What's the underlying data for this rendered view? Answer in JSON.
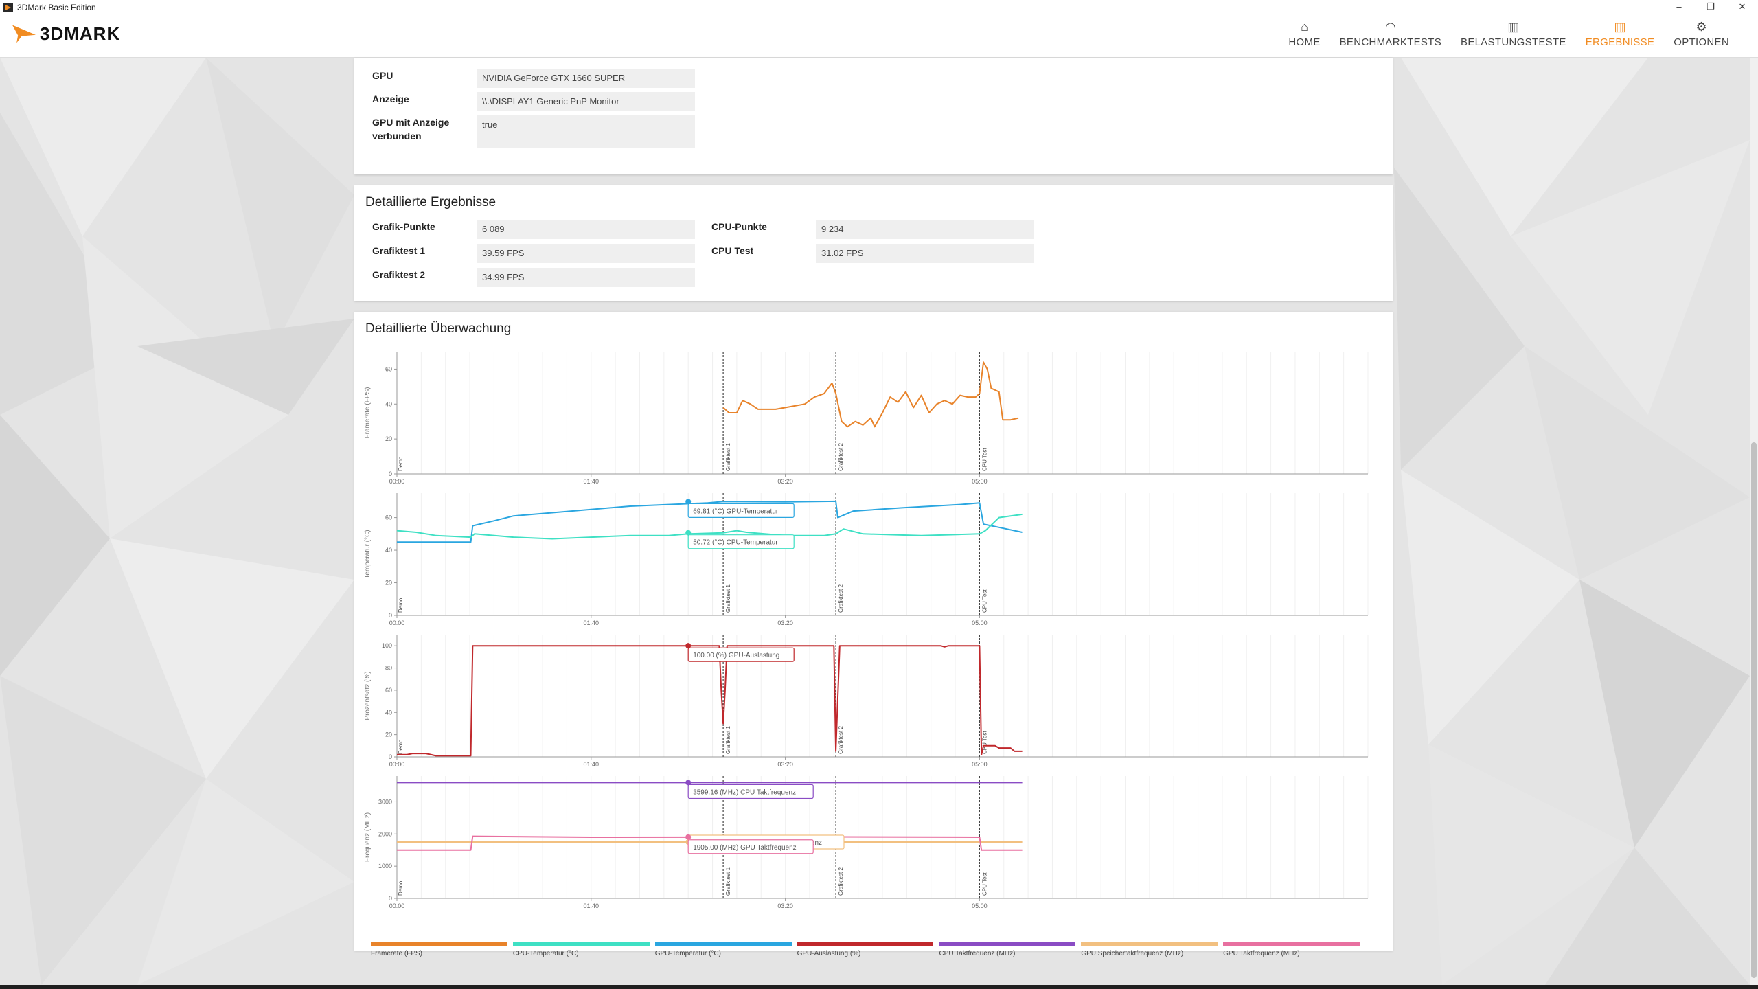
{
  "window": {
    "title": "3DMark Basic Edition",
    "min": "–",
    "max": "❐",
    "close": "✕"
  },
  "brand": {
    "word": "3DMARK"
  },
  "nav": [
    {
      "label": "HOME",
      "icon": "home-icon",
      "glyph": "⌂"
    },
    {
      "label": "BENCHMARKTESTS",
      "icon": "gauge-icon",
      "glyph": "◠"
    },
    {
      "label": "BELASTUNGSTESTE",
      "icon": "bar-chart-icon",
      "glyph": "▥"
    },
    {
      "label": "ERGEBNISSE",
      "icon": "results-icon",
      "glyph": "▥"
    },
    {
      "label": "OPTIONEN",
      "icon": "gear-icon",
      "glyph": "⚙"
    }
  ],
  "system": {
    "rows": [
      {
        "key": "GPU",
        "value": "NVIDIA GeForce GTX 1660 SUPER"
      },
      {
        "key": "Anzeige",
        "value": "\\\\.\\DISPLAY1 Generic PnP Monitor"
      },
      {
        "key": "GPU mit Anzeige verbunden",
        "value": "true"
      }
    ]
  },
  "results": {
    "title": "Detaillierte Ergebnisse",
    "left": [
      {
        "key": "Grafik-Punkte",
        "value": "6 089"
      },
      {
        "key": "Grafiktest 1",
        "value": "39.59 FPS"
      },
      {
        "key": "Grafiktest 2",
        "value": "34.99 FPS"
      }
    ],
    "right": [
      {
        "key": "CPU-Punkte",
        "value": "9 234"
      },
      {
        "key": "CPU Test",
        "value": "31.02 FPS"
      }
    ]
  },
  "monitoring": {
    "title": "Detaillierte Überwachung",
    "x_ticks": [
      "00:00",
      "01:40",
      "03:20",
      "05:00"
    ],
    "markers": [
      {
        "label": "Demo",
        "t": 0
      },
      {
        "label": "Grafiktest 1",
        "t": 168
      },
      {
        "label": "Grafiktest 2",
        "t": 226
      },
      {
        "label": "CPU Test",
        "t": 300
      }
    ],
    "colors": {
      "fps": "#e8832a",
      "cpu_temp": "#3ee0c4",
      "gpu_temp": "#2aa6e0",
      "gpu_load": "#c0282c",
      "cpu_clock": "#8a4cc4",
      "gpu_mem_clock": "#f2c080",
      "gpu_clock": "#e870a0"
    },
    "charts": [
      {
        "id": "fps",
        "ylabel": "Framerate (FPS)",
        "yticks": [
          0,
          20,
          40,
          60
        ],
        "ylim": [
          0,
          70
        ],
        "series": [
          {
            "name": "fps",
            "points": [
              [
                168,
                38
              ],
              [
                171,
                35
              ],
              [
                175,
                35
              ],
              [
                178,
                42
              ],
              [
                182,
                40
              ],
              [
                186,
                37
              ],
              [
                195,
                37
              ],
              [
                200,
                38
              ],
              [
                210,
                40
              ],
              [
                215,
                44
              ],
              [
                220,
                46
              ],
              [
                224,
                52
              ],
              [
                226,
                46
              ],
              [
                229,
                30
              ],
              [
                232,
                27
              ],
              [
                236,
                30
              ],
              [
                240,
                28
              ],
              [
                244,
                32
              ],
              [
                246,
                27
              ],
              [
                250,
                35
              ],
              [
                254,
                44
              ],
              [
                258,
                41
              ],
              [
                262,
                47
              ],
              [
                266,
                38
              ],
              [
                270,
                45
              ],
              [
                274,
                35
              ],
              [
                278,
                40
              ],
              [
                282,
                42
              ],
              [
                286,
                40
              ],
              [
                290,
                45
              ],
              [
                294,
                44
              ],
              [
                298,
                44
              ],
              [
                300,
                46
              ],
              [
                302,
                64
              ],
              [
                304,
                60
              ],
              [
                306,
                49
              ],
              [
                310,
                47
              ],
              [
                312,
                31
              ],
              [
                316,
                31
              ],
              [
                320,
                32
              ]
            ]
          }
        ],
        "tooltips": []
      },
      {
        "id": "temp",
        "ylabel": "Temperatur (°C)",
        "yticks": [
          0,
          20,
          40,
          60
        ],
        "ylim": [
          0,
          75
        ],
        "series": [
          {
            "name": "gpu_temp",
            "points": [
              [
                0,
                45
              ],
              [
                38,
                45
              ],
              [
                39,
                55
              ],
              [
                50,
                58
              ],
              [
                60,
                61
              ],
              [
                80,
                63
              ],
              [
                100,
                65
              ],
              [
                120,
                67
              ],
              [
                140,
                68
              ],
              [
                160,
                69
              ],
              [
                168,
                69.8
              ],
              [
                200,
                69.6
              ],
              [
                226,
                70
              ],
              [
                227,
                60
              ],
              [
                235,
                64
              ],
              [
                260,
                66
              ],
              [
                290,
                68
              ],
              [
                300,
                69
              ],
              [
                302,
                56
              ],
              [
                310,
                54
              ],
              [
                322,
                51
              ]
            ]
          },
          {
            "name": "cpu_temp",
            "points": [
              [
                0,
                52
              ],
              [
                10,
                51
              ],
              [
                20,
                49
              ],
              [
                38,
                48
              ],
              [
                40,
                50
              ],
              [
                60,
                48
              ],
              [
                80,
                47
              ],
              [
                100,
                48
              ],
              [
                120,
                49
              ],
              [
                140,
                49
              ],
              [
                150,
                50
              ],
              [
                168,
                50.7
              ],
              [
                175,
                52
              ],
              [
                180,
                51
              ],
              [
                200,
                49
              ],
              [
                220,
                49
              ],
              [
                226,
                50
              ],
              [
                230,
                53
              ],
              [
                240,
                50
              ],
              [
                270,
                49
              ],
              [
                300,
                50
              ],
              [
                303,
                52
              ],
              [
                310,
                60
              ],
              [
                322,
                62
              ]
            ]
          }
        ],
        "tooltips": [
          {
            "text": "69.81 (°C) GPU-Temperatur",
            "t": 150,
            "v": 69.8,
            "series": "gpu_temp"
          },
          {
            "text": "50.72 (°C) CPU-Temperatur",
            "t": 150,
            "v": 50.7,
            "series": "cpu_temp"
          }
        ]
      },
      {
        "id": "load",
        "ylabel": "Prozentsatz (%)",
        "yticks": [
          0,
          20,
          40,
          60,
          80,
          100
        ],
        "ylim": [
          0,
          110
        ],
        "series": [
          {
            "name": "gpu_load",
            "points": [
              [
                0,
                2
              ],
              [
                5,
                2
              ],
              [
                8,
                3
              ],
              [
                15,
                3
              ],
              [
                20,
                1
              ],
              [
                38,
                1
              ],
              [
                39,
                100
              ],
              [
                166,
                100
              ],
              [
                167,
                60
              ],
              [
                168,
                30
              ],
              [
                169,
                60
              ],
              [
                170,
                100
              ],
              [
                225,
                100
              ],
              [
                226,
                5
              ],
              [
                228,
                100
              ],
              [
                280,
                100
              ],
              [
                282,
                99
              ],
              [
                284,
                100
              ],
              [
                300,
                100
              ],
              [
                301,
                2
              ],
              [
                302,
                10
              ],
              [
                308,
                10
              ],
              [
                310,
                8
              ],
              [
                316,
                8
              ],
              [
                318,
                5
              ],
              [
                322,
                5
              ]
            ]
          }
        ],
        "tooltips": [
          {
            "text": "100.00 (%) GPU-Auslastung",
            "t": 150,
            "v": 100,
            "series": "gpu_load"
          }
        ]
      },
      {
        "id": "freq",
        "ylabel": "Frequenz (MHz)",
        "yticks": [
          0,
          1000,
          2000,
          3000
        ],
        "ylim": [
          0,
          3800
        ],
        "series": [
          {
            "name": "cpu_clock",
            "points": [
              [
                0,
                3599
              ],
              [
                322,
                3599
              ]
            ]
          },
          {
            "name": "gpu_mem_clock",
            "points": [
              [
                0,
                1750
              ],
              [
                322,
                1750
              ]
            ]
          },
          {
            "name": "gpu_clock",
            "points": [
              [
                0,
                1500
              ],
              [
                38,
                1500
              ],
              [
                39,
                1930
              ],
              [
                100,
                1900
              ],
              [
                168,
                1905
              ],
              [
                226,
                1910
              ],
              [
                300,
                1900
              ],
              [
                301,
                1500
              ],
              [
                322,
                1500
              ]
            ]
          }
        ],
        "tooltips": [
          {
            "text": "3599.16 (MHz) CPU Taktfrequenz",
            "t": 150,
            "v": 3599,
            "series": "cpu_clock"
          },
          {
            "text": "1750.24 (MHz) GPU Speichertaktfrequenz",
            "t": 150,
            "v": 1750,
            "series": "gpu_mem_clock"
          },
          {
            "text": "1905.00 (MHz) GPU Taktfrequenz",
            "t": 150,
            "v": 1905,
            "series": "gpu_clock"
          }
        ]
      }
    ],
    "legend": [
      {
        "label": "Framerate (FPS)",
        "series": "fps"
      },
      {
        "label": "CPU-Temperatur (°C)",
        "series": "cpu_temp"
      },
      {
        "label": "GPU-Temperatur (°C)",
        "series": "gpu_temp"
      },
      {
        "label": "GPU-Auslastung (%)",
        "series": "gpu_load"
      },
      {
        "label": "CPU Taktfrequenz (MHz)",
        "series": "cpu_clock"
      },
      {
        "label": "GPU Speichertaktfrequenz (MHz)",
        "series": "gpu_mem_clock"
      },
      {
        "label": "GPU Taktfrequenz (MHz)",
        "series": "gpu_clock"
      }
    ]
  }
}
